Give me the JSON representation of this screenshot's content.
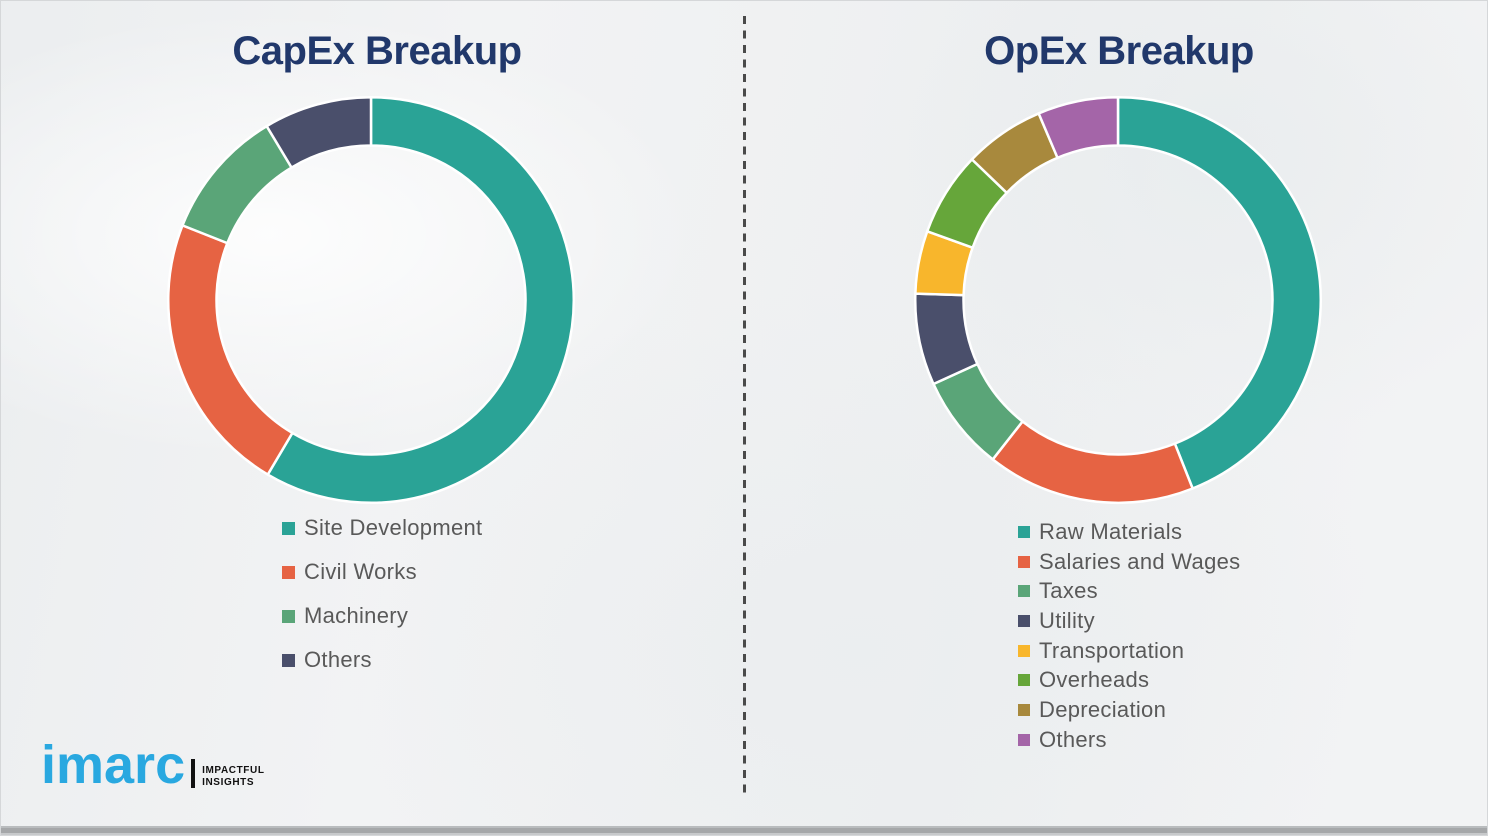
{
  "titles": {
    "capex": "CapEx Breakup",
    "opex": "OpEx Breakup"
  },
  "chart_data": [
    {
      "type": "donut",
      "title": "CapEx Breakup",
      "categories": [
        "Site Development",
        "Civil Works",
        "Machinery",
        "Others"
      ],
      "values": [
        58.5,
        22.5,
        10.4,
        8.6
      ],
      "unit": "percent_estimated_from_arc_angles",
      "colors": [
        "#2aa396",
        "#e66343",
        "#5aa578",
        "#4a4f6b"
      ],
      "start_angle_deg": 0,
      "direction": "clockwise",
      "legend_position": "below-left",
      "data_labels": "none"
    },
    {
      "type": "donut",
      "title": "OpEx Breakup",
      "categories": [
        "Raw Materials",
        "Salaries and Wages",
        "Taxes",
        "Utility",
        "Transportation",
        "Overheads",
        "Depreciation",
        "Others"
      ],
      "values": [
        44.0,
        16.6,
        7.6,
        7.3,
        5.0,
        6.7,
        6.4,
        6.4
      ],
      "unit": "percent_estimated_from_arc_angles",
      "colors": [
        "#2aa396",
        "#e66343",
        "#5aa578",
        "#4a4f6b",
        "#f8b62c",
        "#66a63a",
        "#a8893d",
        "#a465a8"
      ],
      "start_angle_deg": 0,
      "direction": "clockwise",
      "legend_position": "below-left",
      "data_labels": "none"
    }
  ],
  "colors": {
    "title": "#21386b",
    "legend_text": "#595959",
    "divider": "#4a4a4a",
    "brand_blue": "#29a8e0",
    "tagline_black": "#111111",
    "segment_gap_stroke": "#ffffff"
  },
  "logo": {
    "brand": "imarc",
    "tagline_line1": "IMPACTFUL",
    "tagline_line2": "INSIGHTS"
  }
}
